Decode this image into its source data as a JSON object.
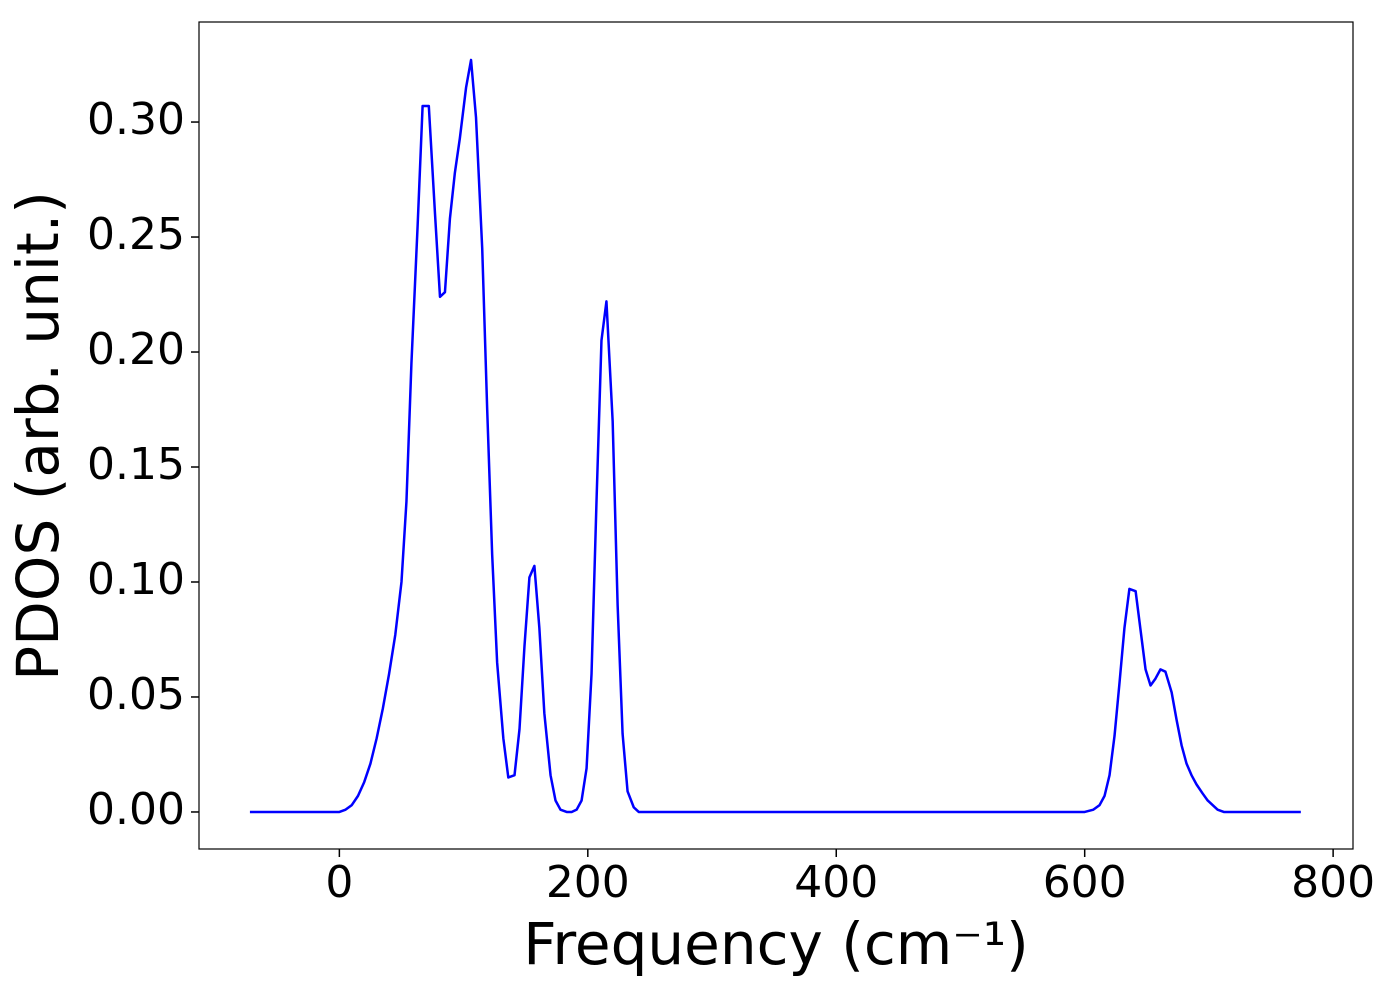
{
  "chart_data": {
    "type": "line",
    "xlabel": "Frequency (cm⁻¹)",
    "ylabel": "PDOS (arb. unit.)",
    "x": [
      -72,
      0,
      5,
      10,
      15,
      20,
      25,
      30,
      35,
      40,
      45,
      50,
      54,
      58,
      63,
      67,
      72,
      77,
      81,
      85,
      89,
      93,
      97,
      102,
      106,
      110,
      115,
      119,
      123,
      127,
      132,
      136,
      141,
      145,
      149,
      153,
      157,
      161,
      165,
      170,
      174,
      178,
      183,
      187,
      191,
      195,
      199,
      203,
      207,
      211,
      215,
      220,
      224,
      228,
      232,
      237,
      241,
      600,
      607,
      612,
      616,
      620,
      624,
      628,
      632,
      636,
      641,
      645,
      649,
      653,
      657,
      661,
      665,
      670,
      674,
      678,
      682,
      686,
      690,
      695,
      699,
      703,
      707,
      712,
      774
    ],
    "values": [
      0,
      0,
      0.001,
      0.003,
      0.007,
      0.013,
      0.021,
      0.032,
      0.045,
      0.06,
      0.077,
      0.1,
      0.135,
      0.195,
      0.255,
      0.307,
      0.307,
      0.26,
      0.224,
      0.226,
      0.258,
      0.278,
      0.293,
      0.315,
      0.327,
      0.302,
      0.245,
      0.175,
      0.112,
      0.065,
      0.032,
      0.015,
      0.016,
      0.036,
      0.072,
      0.102,
      0.107,
      0.08,
      0.043,
      0.016,
      0.005,
      0.001,
      0,
      0,
      0.001,
      0.005,
      0.019,
      0.06,
      0.135,
      0.205,
      0.222,
      0.17,
      0.09,
      0.034,
      0.009,
      0.002,
      0,
      0,
      0.001,
      0.003,
      0.007,
      0.016,
      0.033,
      0.056,
      0.08,
      0.097,
      0.096,
      0.079,
      0.062,
      0.055,
      0.058,
      0.062,
      0.061,
      0.052,
      0.04,
      0.029,
      0.021,
      0.016,
      0.012,
      0.008,
      0.005,
      0.003,
      0.001,
      0,
      0
    ],
    "color": "#0000ff",
    "xlim": [
      -113,
      816
    ],
    "ylim": [
      -0.0161,
      0.3435
    ],
    "xticks": [
      0,
      200,
      400,
      600,
      800
    ],
    "yticks": [
      {
        "value": 0,
        "label": "0.00"
      },
      0.05,
      {
        "value": 0.1,
        "label": "0.10"
      },
      0.15,
      {
        "value": 0.2,
        "label": "0.20"
      },
      0.25,
      {
        "value": 0.3,
        "label": "0.30"
      }
    ]
  }
}
